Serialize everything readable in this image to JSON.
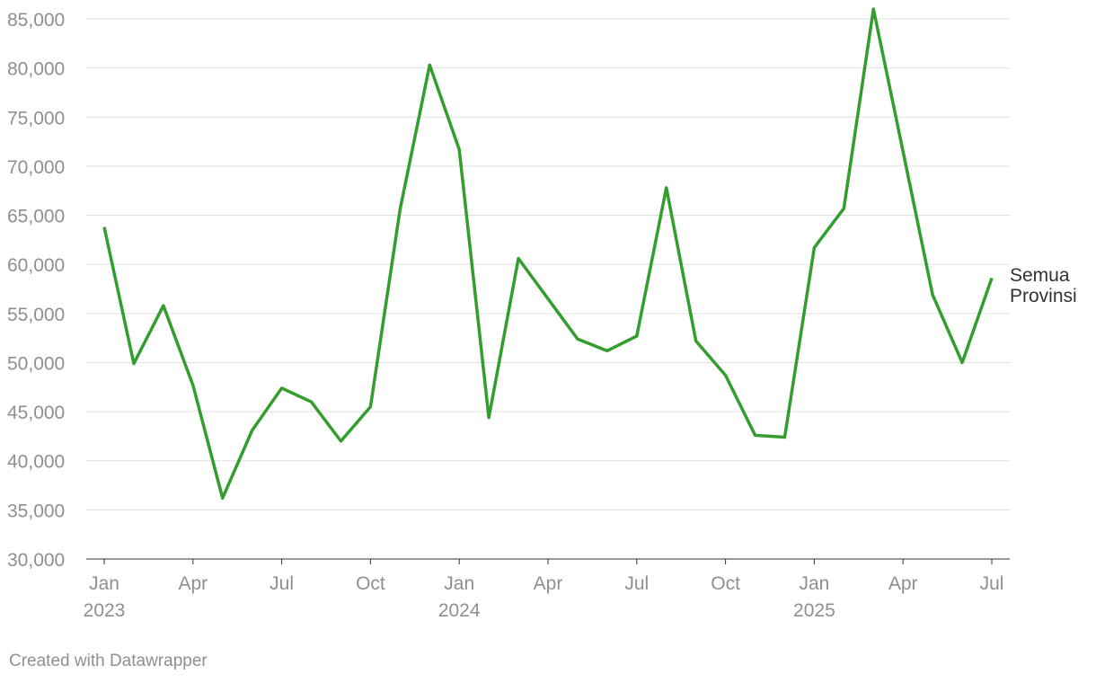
{
  "chart_data": {
    "type": "line",
    "x": [
      "2023-01",
      "2023-02",
      "2023-03",
      "2023-04",
      "2023-05",
      "2023-06",
      "2023-07",
      "2023-08",
      "2023-09",
      "2023-10",
      "2023-11",
      "2023-12",
      "2024-01",
      "2024-02",
      "2024-03",
      "2024-04",
      "2024-05",
      "2024-06",
      "2024-07",
      "2024-08",
      "2024-09",
      "2024-10",
      "2024-11",
      "2024-12",
      "2025-01",
      "2025-02",
      "2025-03",
      "2025-04",
      "2025-05",
      "2025-06",
      "2025-07"
    ],
    "series": [
      {
        "name": "Semua Provinsi",
        "color": "#339e2e",
        "values": [
          63800,
          49900,
          55800,
          47700,
          36200,
          43100,
          47400,
          46000,
          42000,
          45500,
          65600,
          80300,
          71700,
          44400,
          60600,
          56500,
          52400,
          51200,
          52700,
          67800,
          52200,
          48700,
          42600,
          42400,
          61700,
          65700,
          86000,
          71500,
          56900,
          50000,
          58600
        ]
      }
    ],
    "xlim": [
      "2023-01",
      "2025-07"
    ],
    "xticks": [
      {
        "value": "2023-01",
        "label": "Jan",
        "year": "2023"
      },
      {
        "value": "2023-04",
        "label": "Apr"
      },
      {
        "value": "2023-07",
        "label": "Jul"
      },
      {
        "value": "2023-10",
        "label": "Oct"
      },
      {
        "value": "2024-01",
        "label": "Jan",
        "year": "2024"
      },
      {
        "value": "2024-04",
        "label": "Apr"
      },
      {
        "value": "2024-07",
        "label": "Jul"
      },
      {
        "value": "2024-10",
        "label": "Oct"
      },
      {
        "value": "2025-01",
        "label": "Jan",
        "year": "2025"
      },
      {
        "value": "2025-04",
        "label": "Apr"
      },
      {
        "value": "2025-07",
        "label": "Jul"
      }
    ],
    "ylim": [
      30000,
      85000
    ],
    "yticks": [
      {
        "value": 30000,
        "label": "30,000"
      },
      {
        "value": 35000,
        "label": "35,000"
      },
      {
        "value": 40000,
        "label": "40,000"
      },
      {
        "value": 45000,
        "label": "45,000"
      },
      {
        "value": 50000,
        "label": "50,000"
      },
      {
        "value": 55000,
        "label": "55,000"
      },
      {
        "value": 60000,
        "label": "60,000"
      },
      {
        "value": 65000,
        "label": "65,000"
      },
      {
        "value": 70000,
        "label": "70,000"
      },
      {
        "value": 75000,
        "label": "75,000"
      },
      {
        "value": 80000,
        "label": "80,000"
      },
      {
        "value": 85000,
        "label": "85,000"
      }
    ],
    "grid": true,
    "credit": "Created with Datawrapper"
  }
}
